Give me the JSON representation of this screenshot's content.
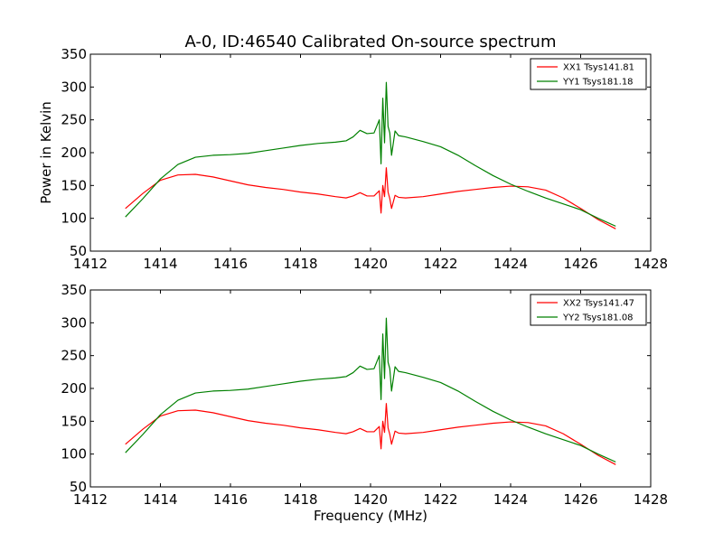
{
  "title": "A-0, ID:46540 Calibrated On-source spectrum",
  "xlabel": "Frequency (MHz)",
  "ylabel": "Power in Kelvin",
  "colors": {
    "xx": "#ff0000",
    "yy": "#008000",
    "axes": "#000000",
    "background": "#ffffff"
  },
  "chart_data": [
    {
      "type": "line",
      "title": "A-0, ID:46540 Calibrated On-source spectrum",
      "xlabel": "",
      "ylabel": "Power in Kelvin",
      "xlim": [
        1412,
        1428
      ],
      "ylim": [
        50,
        350
      ],
      "xticks": [
        1412,
        1414,
        1416,
        1418,
        1420,
        1422,
        1424,
        1426,
        1428
      ],
      "yticks": [
        50,
        100,
        150,
        200,
        250,
        300,
        350
      ],
      "grid": false,
      "legend": "top-right",
      "series": [
        {
          "name": "XX1 Tsys141.81",
          "color": "#ff0000",
          "x": [
            1413.0,
            1413.5,
            1414.0,
            1414.5,
            1415.0,
            1415.5,
            1416.0,
            1416.5,
            1417.0,
            1417.5,
            1418.0,
            1418.5,
            1419.0,
            1419.3,
            1419.5,
            1419.7,
            1419.9,
            1420.1,
            1420.25,
            1420.3,
            1420.35,
            1420.4,
            1420.45,
            1420.5,
            1420.55,
            1420.6,
            1420.7,
            1420.8,
            1421.0,
            1421.5,
            1422.0,
            1422.5,
            1423.0,
            1423.5,
            1424.0,
            1424.5,
            1425.0,
            1425.5,
            1426.0,
            1426.5,
            1427.0
          ],
          "y": [
            115,
            138,
            158,
            166,
            167,
            163,
            157,
            151,
            147,
            144,
            140,
            137,
            133,
            131,
            134,
            139,
            134,
            134,
            142,
            108,
            150,
            133,
            177,
            140,
            130,
            115,
            135,
            132,
            131,
            133,
            137,
            141,
            144,
            147,
            149,
            148,
            143,
            131,
            115,
            98,
            84
          ]
        },
        {
          "name": "YY1 Tsys181.18",
          "color": "#008000",
          "x": [
            1413.0,
            1413.5,
            1414.0,
            1414.5,
            1415.0,
            1415.5,
            1416.0,
            1416.5,
            1417.0,
            1417.5,
            1418.0,
            1418.5,
            1419.0,
            1419.3,
            1419.5,
            1419.7,
            1419.9,
            1420.1,
            1420.25,
            1420.3,
            1420.35,
            1420.4,
            1420.45,
            1420.5,
            1420.55,
            1420.6,
            1420.7,
            1420.8,
            1421.0,
            1421.5,
            1422.0,
            1422.5,
            1423.0,
            1423.5,
            1424.0,
            1424.5,
            1425.0,
            1425.5,
            1426.0,
            1426.5,
            1427.0
          ],
          "y": [
            102,
            130,
            160,
            182,
            193,
            196,
            197,
            199,
            203,
            207,
            211,
            214,
            216,
            218,
            224,
            234,
            229,
            230,
            250,
            183,
            283,
            215,
            307,
            240,
            230,
            196,
            233,
            226,
            224,
            217,
            209,
            196,
            180,
            165,
            152,
            141,
            131,
            122,
            113,
            100,
            88
          ]
        }
      ]
    },
    {
      "type": "line",
      "title": "",
      "xlabel": "Frequency (MHz)",
      "ylabel": "",
      "xlim": [
        1412,
        1428
      ],
      "ylim": [
        50,
        350
      ],
      "xticks": [
        1412,
        1414,
        1416,
        1418,
        1420,
        1422,
        1424,
        1426,
        1428
      ],
      "yticks": [
        50,
        100,
        150,
        200,
        250,
        300,
        350
      ],
      "grid": false,
      "legend": "top-right",
      "series": [
        {
          "name": "XX2 Tsys141.47",
          "color": "#ff0000",
          "x": [
            1413.0,
            1413.5,
            1414.0,
            1414.5,
            1415.0,
            1415.5,
            1416.0,
            1416.5,
            1417.0,
            1417.5,
            1418.0,
            1418.5,
            1419.0,
            1419.3,
            1419.5,
            1419.7,
            1419.9,
            1420.1,
            1420.25,
            1420.3,
            1420.35,
            1420.4,
            1420.45,
            1420.5,
            1420.55,
            1420.6,
            1420.7,
            1420.8,
            1421.0,
            1421.5,
            1422.0,
            1422.5,
            1423.0,
            1423.5,
            1424.0,
            1424.5,
            1425.0,
            1425.5,
            1426.0,
            1426.5,
            1427.0
          ],
          "y": [
            115,
            138,
            158,
            166,
            167,
            163,
            157,
            151,
            147,
            144,
            140,
            137,
            133,
            131,
            134,
            139,
            134,
            134,
            142,
            108,
            150,
            133,
            177,
            140,
            130,
            115,
            135,
            132,
            131,
            133,
            137,
            141,
            144,
            147,
            149,
            148,
            143,
            131,
            115,
            98,
            84
          ]
        },
        {
          "name": "YY2 Tsys181.08",
          "color": "#008000",
          "x": [
            1413.0,
            1413.5,
            1414.0,
            1414.5,
            1415.0,
            1415.5,
            1416.0,
            1416.5,
            1417.0,
            1417.5,
            1418.0,
            1418.5,
            1419.0,
            1419.3,
            1419.5,
            1419.7,
            1419.9,
            1420.1,
            1420.25,
            1420.3,
            1420.35,
            1420.4,
            1420.45,
            1420.5,
            1420.55,
            1420.6,
            1420.7,
            1420.8,
            1421.0,
            1421.5,
            1422.0,
            1422.5,
            1423.0,
            1423.5,
            1424.0,
            1424.5,
            1425.0,
            1425.5,
            1426.0,
            1426.5,
            1427.0
          ],
          "y": [
            102,
            130,
            160,
            182,
            193,
            196,
            197,
            199,
            203,
            207,
            211,
            214,
            216,
            218,
            224,
            234,
            229,
            230,
            250,
            183,
            283,
            215,
            307,
            240,
            230,
            196,
            233,
            226,
            224,
            217,
            209,
            196,
            180,
            165,
            152,
            141,
            131,
            122,
            113,
            100,
            88
          ]
        }
      ]
    }
  ]
}
